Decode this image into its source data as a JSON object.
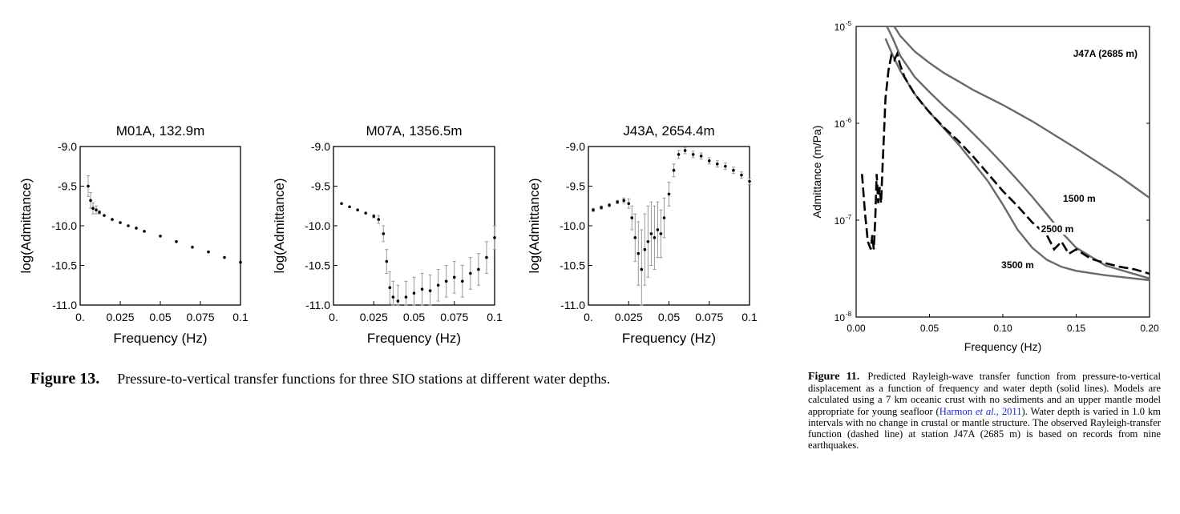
{
  "fig13": {
    "caption_label": "Figure 13.",
    "caption_text": "Pressure-to-vertical transfer functions for three SIO stations at different water depths."
  },
  "fig11": {
    "caption_label": "Figure 11.",
    "caption_text_1": "Predicted Rayleigh-wave transfer function from pressure-to-vertical displacement as a function of frequency and water depth (solid lines). Models are calculated using a 7 km oceanic crust with no sediments and an upper mantle model appropriate for young seafloor (",
    "cite_author": "Harmon ",
    "cite_etal": "et al.",
    "cite_year": ", 2011",
    "caption_text_2": "). Water depth is varied in 1.0 km intervals with no change in crustal or mantle structure. The observed Rayleigh-transfer function (dashed line) at station J47A (2685 m) is based on records from nine earthquakes."
  },
  "chart_data": [
    {
      "type": "scatter",
      "title": "M01A, 132.9m",
      "xlabel": "Frequency (Hz)",
      "ylabel": "log(Admittance)",
      "xlim": [
        0,
        0.1
      ],
      "ylim": [
        -11.0,
        -9.0
      ],
      "xticks": [
        "0.",
        "0.025",
        "0.05",
        "0.075",
        "0.1"
      ],
      "yticks": [
        "-11.0",
        "-10.5",
        "-10.0",
        "-9.5",
        "-9.0"
      ],
      "x": [
        0.005,
        0.0065,
        0.008,
        0.01,
        0.012,
        0.015,
        0.02,
        0.025,
        0.03,
        0.035,
        0.04,
        0.05,
        0.06,
        0.07,
        0.08,
        0.09,
        0.1
      ],
      "y": [
        -9.5,
        -9.68,
        -9.78,
        -9.8,
        -9.83,
        -9.87,
        -9.92,
        -9.96,
        -10.0,
        -10.03,
        -10.07,
        -10.13,
        -10.2,
        -10.27,
        -10.33,
        -10.4,
        -10.46
      ],
      "err": [
        0.13,
        0.1,
        0.07,
        0.05,
        0.02,
        0.01,
        0.01,
        0.01,
        0.01,
        0.01,
        0.01,
        0.01,
        0.01,
        0.01,
        0.01,
        0.01,
        0.01
      ]
    },
    {
      "type": "scatter",
      "title": "M07A, 1356.5m",
      "xlabel": "Frequency (Hz)",
      "ylabel": "log(Admittance)",
      "xlim": [
        0,
        0.1
      ],
      "ylim": [
        -11.0,
        -9.0
      ],
      "xticks": [
        "0.",
        "0.025",
        "0.05",
        "0.075",
        "0.1"
      ],
      "yticks": [
        "-11.0",
        "-10.5",
        "-10.0",
        "-9.5",
        "-9.0"
      ],
      "x": [
        0.005,
        0.01,
        0.015,
        0.02,
        0.025,
        0.028,
        0.031,
        0.033,
        0.035,
        0.037,
        0.04,
        0.045,
        0.05,
        0.055,
        0.06,
        0.065,
        0.07,
        0.075,
        0.08,
        0.085,
        0.09,
        0.095,
        0.1
      ],
      "y": [
        -9.72,
        -9.76,
        -9.8,
        -9.84,
        -9.88,
        -9.92,
        -10.1,
        -10.45,
        -10.78,
        -10.9,
        -10.95,
        -10.9,
        -10.85,
        -10.8,
        -10.82,
        -10.75,
        -10.7,
        -10.65,
        -10.7,
        -10.6,
        -10.55,
        -10.4,
        -10.15
      ],
      "err": [
        0.01,
        0.01,
        0.01,
        0.01,
        0.02,
        0.05,
        0.1,
        0.15,
        0.2,
        0.2,
        0.2,
        0.2,
        0.2,
        0.2,
        0.2,
        0.2,
        0.2,
        0.2,
        0.2,
        0.2,
        0.2,
        0.2,
        0.15
      ]
    },
    {
      "type": "scatter",
      "title": "J43A, 2654.4m",
      "xlabel": "Frequency (Hz)",
      "ylabel": "log(Admittance)",
      "xlim": [
        0,
        0.1
      ],
      "ylim": [
        -11.0,
        -9.0
      ],
      "xticks": [
        "0.",
        "0.025",
        "0.05",
        "0.075",
        "0.1"
      ],
      "yticks": [
        "-11.0",
        "-10.5",
        "-10.0",
        "-9.5",
        "-9.0"
      ],
      "x": [
        0.003,
        0.008,
        0.013,
        0.018,
        0.022,
        0.025,
        0.027,
        0.029,
        0.031,
        0.033,
        0.035,
        0.037,
        0.039,
        0.041,
        0.043,
        0.045,
        0.047,
        0.05,
        0.053,
        0.056,
        0.06,
        0.065,
        0.07,
        0.075,
        0.08,
        0.085,
        0.09,
        0.095,
        0.1
      ],
      "y": [
        -9.8,
        -9.77,
        -9.74,
        -9.7,
        -9.68,
        -9.72,
        -9.9,
        -10.15,
        -10.35,
        -10.55,
        -10.3,
        -10.2,
        -10.1,
        -10.15,
        -10.05,
        -10.1,
        -9.9,
        -9.6,
        -9.3,
        -9.1,
        -9.05,
        -9.1,
        -9.12,
        -9.18,
        -9.22,
        -9.25,
        -9.3,
        -9.36,
        -9.44
      ],
      "err": [
        0.02,
        0.02,
        0.02,
        0.02,
        0.03,
        0.06,
        0.15,
        0.3,
        0.4,
        0.5,
        0.45,
        0.45,
        0.4,
        0.4,
        0.35,
        0.3,
        0.25,
        0.15,
        0.08,
        0.05,
        0.04,
        0.04,
        0.04,
        0.04,
        0.04,
        0.04,
        0.04,
        0.04,
        0.04
      ]
    },
    {
      "type": "line",
      "title": "J47A (2685 m)",
      "xlabel": "Frequency (Hz)",
      "ylabel": "Admittance (m/Pa)",
      "yscale": "log",
      "xlim": [
        0,
        0.2
      ],
      "ylim": [
        1e-08,
        1e-05
      ],
      "xticks": [
        "0.00",
        "0.05",
        "0.10",
        "0.15",
        "0.20"
      ],
      "yticks": [
        "10-8",
        "10-7",
        "10-6",
        "10-5"
      ],
      "series": [
        {
          "name": "1500 m",
          "x": [
            0.026,
            0.03,
            0.04,
            0.05,
            0.06,
            0.07,
            0.08,
            0.1,
            0.12,
            0.15,
            0.18,
            0.2
          ],
          "y": [
            1e-05,
            8e-06,
            5.5e-06,
            4.2e-06,
            3.3e-06,
            2.7e-06,
            2.2e-06,
            1.55e-06,
            1.05e-06,
            5.5e-07,
            2.8e-07,
            1.7e-07
          ]
        },
        {
          "name": "2500 m",
          "x": [
            0.021,
            0.025,
            0.03,
            0.04,
            0.05,
            0.06,
            0.07,
            0.08,
            0.09,
            0.1,
            0.11,
            0.12,
            0.13,
            0.14,
            0.15,
            0.17,
            0.2
          ],
          "y": [
            1e-05,
            7.5e-06,
            5e-06,
            3e-06,
            2.1e-06,
            1.5e-06,
            1.1e-06,
            7.8e-07,
            5.5e-07,
            3.8e-07,
            2.6e-07,
            1.75e-07,
            1.15e-07,
            7.5e-08,
            5.2e-08,
            3.4e-08,
            2.5e-08
          ]
        },
        {
          "name": "3500 m",
          "x": [
            0.02,
            0.025,
            0.03,
            0.04,
            0.05,
            0.06,
            0.07,
            0.08,
            0.09,
            0.1,
            0.11,
            0.12,
            0.13,
            0.14,
            0.15,
            0.17,
            0.2
          ],
          "y": [
            7.5e-06,
            5e-06,
            3.5e-06,
            2e-06,
            1.3e-06,
            8.8e-07,
            6e-07,
            3.9e-07,
            2.5e-07,
            1.45e-07,
            8e-08,
            5.2e-08,
            3.9e-08,
            3.3e-08,
            3e-08,
            2.7e-08,
            2.4e-08
          ]
        },
        {
          "name": "",
          "dashed": true,
          "x": [
            0.004,
            0.006,
            0.008,
            0.01,
            0.011,
            0.012,
            0.013,
            0.014,
            0.015,
            0.016,
            0.017,
            0.018,
            0.019,
            0.02,
            0.022,
            0.024,
            0.026,
            0.028,
            0.03,
            0.033,
            0.036,
            0.04,
            0.045,
            0.05,
            0.06,
            0.07,
            0.08,
            0.09,
            0.1,
            0.11,
            0.12,
            0.13,
            0.135,
            0.14,
            0.145,
            0.15,
            0.16,
            0.17,
            0.18,
            0.19,
            0.2
          ],
          "y": [
            3e-07,
            1.2e-07,
            6e-08,
            5e-08,
            7e-08,
            5e-08,
            1e-07,
            3e-07,
            1.5e-07,
            2.2e-07,
            1.5e-07,
            3.5e-07,
            8e-07,
            1.8e-06,
            3.5e-06,
            5e-06,
            4.5e-06,
            5.2e-06,
            4e-06,
            3e-06,
            2.5e-06,
            2e-06,
            1.6e-06,
            1.3e-06,
            9e-07,
            6.5e-07,
            4.5e-07,
            3e-07,
            2e-07,
            1.4e-07,
            9.5e-08,
            7e-08,
            5e-08,
            6e-08,
            4.5e-08,
            5e-08,
            4e-08,
            3.6e-08,
            3.3e-08,
            3.1e-08,
            2.8e-08
          ]
        }
      ],
      "labels": [
        "1500 m",
        "2500 m",
        "3500 m"
      ]
    }
  ]
}
